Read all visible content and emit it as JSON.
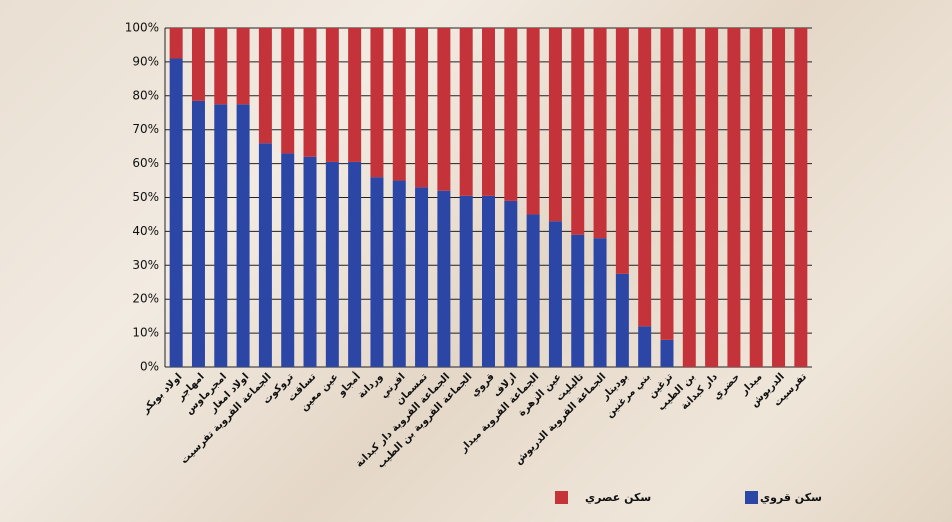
{
  "chart_data": {
    "type": "stacked_bar",
    "categories": [
      "اولاد بوبكر",
      "امهاجر",
      "امجرماوس",
      "اولاد امغار",
      "الجماعة القروية تفرسيت",
      "تروكوت",
      "تساقت",
      "عين معين",
      "أمجاو",
      "وردانة",
      "افرني",
      "تمسمان",
      "الجماعة القروية دار كبدانة",
      "الجماعة القروية بن الطيب",
      "قروي",
      "ازلاف",
      "الجماعة القروية ميدار",
      "عين الزهرة",
      "تاليليت",
      "الجماعة القروية الدريوش",
      "بودينار",
      "بني مرغنين",
      "تزغين",
      "بن الطيب",
      "دار كبدانة",
      "حضري",
      "ميدار",
      "الدريوش",
      "تفرسيت"
    ],
    "series": [
      {
        "name": "سكن قروي",
        "color": "#2c46a6",
        "values": [
          91,
          78.5,
          77.5,
          77.5,
          66,
          63,
          62,
          60.5,
          60.5,
          56,
          55,
          53,
          52,
          50.5,
          50.5,
          49,
          45,
          43,
          39,
          38,
          27.5,
          12,
          8,
          0,
          0,
          0,
          0,
          0,
          0
        ]
      },
      {
        "name": "سكن عصري",
        "color": "#c5333a",
        "values": [
          9,
          21.5,
          22.5,
          22.5,
          34,
          37,
          38,
          39.5,
          39.5,
          44,
          45,
          47,
          48,
          49.5,
          49.5,
          51,
          55,
          57,
          61,
          62,
          72.5,
          88,
          92,
          100,
          100,
          100,
          100,
          100,
          100
        ]
      }
    ],
    "ylim": [
      0,
      100
    ],
    "yticks": [
      {
        "value": 0,
        "label": "0%"
      },
      {
        "value": 10,
        "label": "10%"
      },
      {
        "value": 20,
        "label": "20%"
      },
      {
        "value": 30,
        "label": "30%"
      },
      {
        "value": 40,
        "label": "40%"
      },
      {
        "value": 50,
        "label": "50%"
      },
      {
        "value": 60,
        "label": "60%"
      },
      {
        "value": 70,
        "label": "70%"
      },
      {
        "value": 80,
        "label": "80%"
      },
      {
        "value": 90,
        "label": "90%"
      },
      {
        "value": 100,
        "label": "100%"
      }
    ],
    "grid": true
  }
}
